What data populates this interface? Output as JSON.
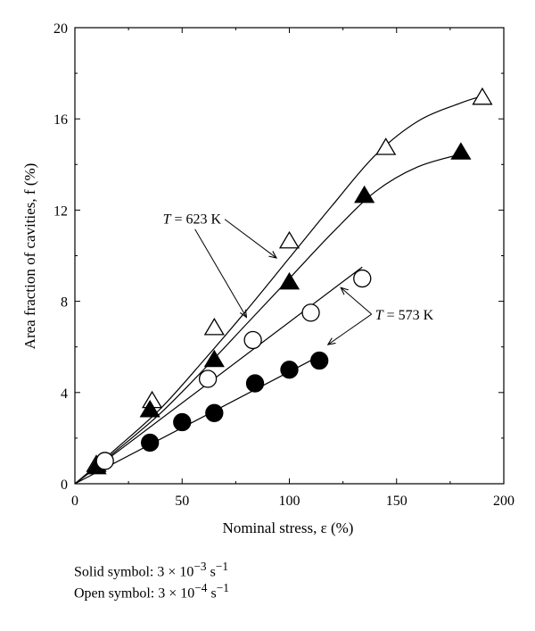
{
  "chart_data": {
    "type": "scatter",
    "xlabel": "Nominal stress, ε (%)",
    "ylabel": "Area fraction of cavities, f (%)",
    "xlim": [
      0,
      200
    ],
    "ylim": [
      0,
      20
    ],
    "xticks": [
      0,
      50,
      100,
      150,
      200
    ],
    "yticks": [
      0,
      4,
      8,
      12,
      16,
      20
    ],
    "grid": false,
    "series": [
      {
        "temperature": "623 K",
        "symbol": "open-triangle",
        "points": [
          [
            10,
            0.8
          ],
          [
            36,
            3.6
          ],
          [
            65,
            6.8
          ],
          [
            100,
            10.6
          ],
          [
            145,
            14.7
          ],
          [
            190,
            16.9
          ]
        ],
        "curve": [
          [
            0,
            0
          ],
          [
            20,
            1.6
          ],
          [
            40,
            3.3
          ],
          [
            60,
            5.4
          ],
          [
            80,
            7.6
          ],
          [
            100,
            9.9
          ],
          [
            120,
            12.2
          ],
          [
            140,
            14.4
          ],
          [
            160,
            15.9
          ],
          [
            180,
            16.7
          ],
          [
            190,
            17.0
          ]
        ]
      },
      {
        "temperature": "623 K",
        "symbol": "solid-triangle",
        "points": [
          [
            10,
            0.7
          ],
          [
            35,
            3.2
          ],
          [
            65,
            5.4
          ],
          [
            100,
            8.8
          ],
          [
            135,
            12.6
          ],
          [
            180,
            14.5
          ]
        ],
        "curve": [
          [
            0,
            0
          ],
          [
            20,
            1.5
          ],
          [
            40,
            3.1
          ],
          [
            60,
            5.0
          ],
          [
            80,
            7.0
          ],
          [
            100,
            9.0
          ],
          [
            120,
            11.0
          ],
          [
            140,
            12.8
          ],
          [
            160,
            13.9
          ],
          [
            182,
            14.5
          ]
        ]
      },
      {
        "temperature": "573 K",
        "symbol": "open-circle",
        "points": [
          [
            14,
            1.0
          ],
          [
            62,
            4.6
          ],
          [
            83,
            6.3
          ],
          [
            110,
            7.5
          ],
          [
            134,
            9.0
          ]
        ],
        "curve": [
          [
            0,
            0
          ],
          [
            134,
            9.5
          ]
        ]
      },
      {
        "temperature": "573 K",
        "symbol": "solid-circle",
        "points": [
          [
            35,
            1.8
          ],
          [
            50,
            2.7
          ],
          [
            65,
            3.1
          ],
          [
            84,
            4.4
          ],
          [
            100,
            5.0
          ],
          [
            114,
            5.4
          ]
        ],
        "curve": [
          [
            0,
            0
          ],
          [
            114,
            5.6
          ]
        ]
      }
    ],
    "annotations": [
      {
        "id": "t623",
        "text_prefix": "T",
        "text_rest": " = 623 K",
        "label_at": [
          41,
          11.4
        ],
        "arrows_to": [
          [
            94,
            9.9
          ],
          [
            80,
            7.3
          ]
        ]
      },
      {
        "id": "t573",
        "text_prefix": "T",
        "text_rest": " = 573 K",
        "label_at": [
          140,
          7.2
        ],
        "arrows_to": [
          [
            124,
            8.6
          ],
          [
            118,
            6.1
          ]
        ]
      }
    ],
    "colors": {
      "axis": "#000000",
      "series": "#000000",
      "background": "#ffffff"
    }
  },
  "notes": {
    "solid": {
      "label": "Solid symbol: 3 × 10",
      "exponent": "−3",
      "unit": " s",
      "unit_exponent": "−1"
    },
    "open": {
      "label": "Open symbol: 3 × 10",
      "exponent": "−4",
      "unit": " s",
      "unit_exponent": "−1"
    }
  }
}
